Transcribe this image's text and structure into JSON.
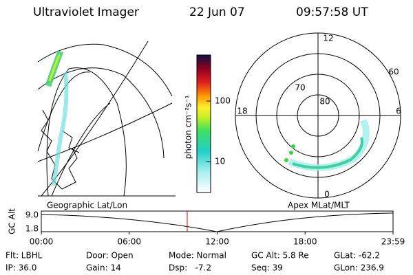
{
  "header": {
    "title": "Ultraviolet Imager",
    "date": "22 Jun 07",
    "time": "09:57:58 UT"
  },
  "colorbar": {
    "label": "photon cm⁻²s⁻¹",
    "ticks": [
      "100",
      "10"
    ]
  },
  "polar": {
    "labels": {
      "top": "12",
      "left": "18",
      "right": "6",
      "bottom": "0"
    },
    "rings": [
      "80",
      "70",
      "60"
    ]
  },
  "panels": {
    "left": "Geographic Lat/Lon",
    "right": "Apex MLat/MLT"
  },
  "timeline": {
    "axis_label": "GC Alt",
    "yticks": [
      "9.0",
      "1.8"
    ],
    "xticks": [
      "00:00",
      "06:00",
      "12:00",
      "18:00",
      "23:59"
    ]
  },
  "footer": {
    "rows": [
      [
        "Flt: LBHL",
        "Door: Open",
        "Mode: Normal",
        "GC Alt: 5.8 Re",
        "GLat: -62.2"
      ],
      [
        "IP: 36.0",
        "Gain: 14",
        "Dsp:   -7.2",
        "Seq: 39",
        "GLon: 236.9"
      ]
    ]
  }
}
